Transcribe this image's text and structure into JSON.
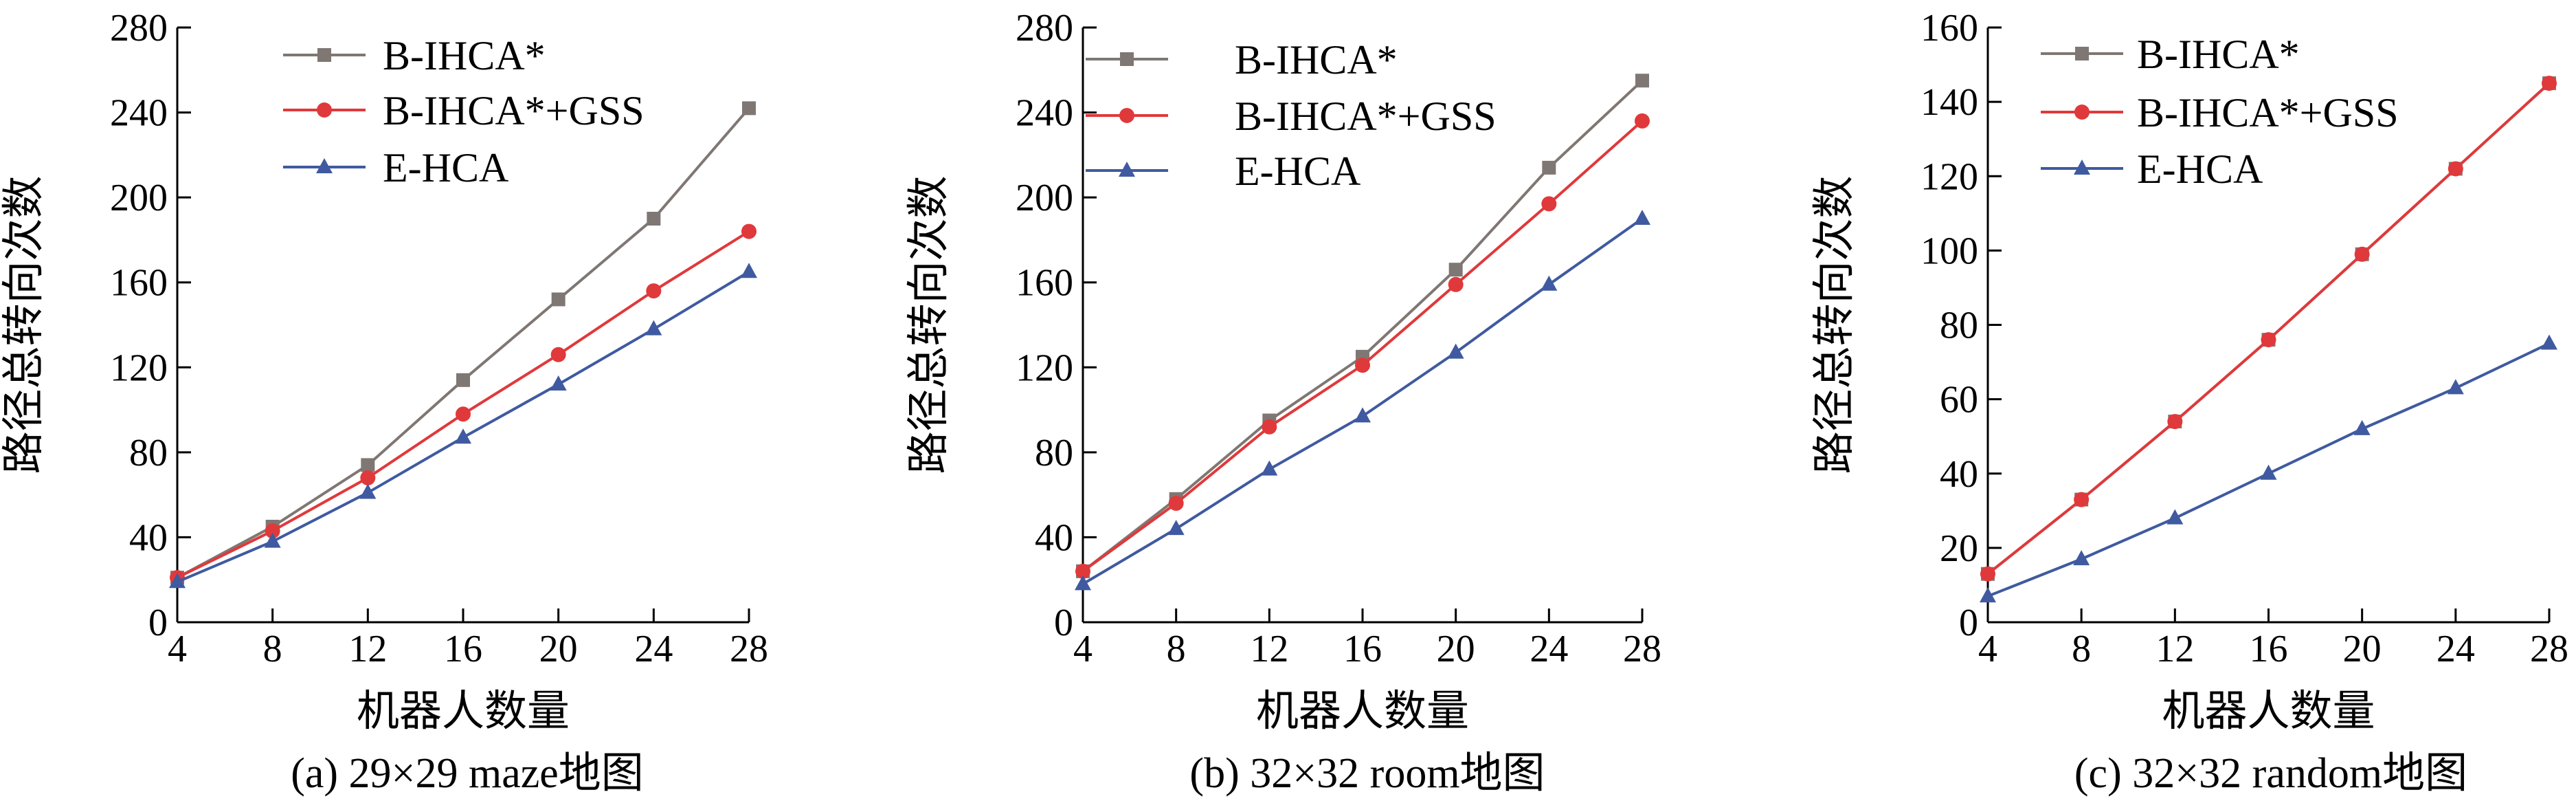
{
  "chart_data": [
    {
      "type": "line",
      "caption": "(a) 29×29 maze地图",
      "xlabel": "机器人数量",
      "ylabel": "路径总转向次数",
      "x": [
        4,
        8,
        12,
        16,
        20,
        24,
        28
      ],
      "xticks": [
        "4",
        "8",
        "12",
        "16",
        "20",
        "24",
        "28"
      ],
      "ylim": [
        0,
        280
      ],
      "yticks": [
        "0",
        "40",
        "80",
        "120",
        "160",
        "200",
        "240",
        "280"
      ],
      "legend_position": "top-left",
      "series": [
        {
          "name": "B-IHCA*",
          "marker": "square",
          "color": "#7f7773",
          "values": [
            21,
            45,
            74,
            114,
            152,
            190,
            242
          ]
        },
        {
          "name": "B-IHCA*+GSS",
          "marker": "circle",
          "color": "#e0393b",
          "values": [
            21,
            43,
            68,
            98,
            126,
            156,
            184
          ]
        },
        {
          "name": "E-HCA",
          "marker": "triangle",
          "color": "#3f5aa0",
          "values": [
            19,
            38,
            61,
            87,
            112,
            138,
            165
          ]
        }
      ]
    },
    {
      "type": "line",
      "caption": "(b) 32×32 room地图",
      "xlabel": "机器人数量",
      "ylabel": "路径总转向次数",
      "x": [
        4,
        8,
        12,
        16,
        20,
        24,
        28
      ],
      "xticks": [
        "4",
        "8",
        "12",
        "16",
        "20",
        "24",
        "28"
      ],
      "ylim": [
        0,
        280
      ],
      "yticks": [
        "0",
        "40",
        "80",
        "120",
        "160",
        "200",
        "240",
        "280"
      ],
      "legend_position": "top-left",
      "series": [
        {
          "name": "B-IHCA*",
          "marker": "square",
          "color": "#7f7773",
          "values": [
            24,
            58,
            95,
            125,
            166,
            214,
            255
          ]
        },
        {
          "name": "B-IHCA*+GSS",
          "marker": "circle",
          "color": "#e0393b",
          "values": [
            24,
            56,
            92,
            121,
            159,
            197,
            236
          ]
        },
        {
          "name": "E-HCA",
          "marker": "triangle",
          "color": "#3f5aa0",
          "values": [
            18,
            44,
            72,
            97,
            127,
            159,
            190
          ]
        }
      ]
    },
    {
      "type": "line",
      "caption": "(c) 32×32 random地图",
      "xlabel": "机器人数量",
      "ylabel": "路径总转向次数",
      "x": [
        4,
        8,
        12,
        16,
        20,
        24,
        28
      ],
      "xticks": [
        "4",
        "8",
        "12",
        "16",
        "20",
        "24",
        "28"
      ],
      "ylim": [
        0,
        160
      ],
      "yticks": [
        "0",
        "20",
        "40",
        "60",
        "80",
        "100",
        "120",
        "140",
        "160"
      ],
      "legend_position": "top-left",
      "series": [
        {
          "name": "B-IHCA*",
          "marker": "square",
          "color": "#7f7773",
          "values": [
            13,
            33,
            54,
            76,
            99,
            122,
            145
          ]
        },
        {
          "name": "B-IHCA*+GSS",
          "marker": "circle",
          "color": "#e0393b",
          "values": [
            13,
            33,
            54,
            76,
            99,
            122,
            145
          ]
        },
        {
          "name": "E-HCA",
          "marker": "triangle",
          "color": "#3f5aa0",
          "values": [
            7,
            17,
            28,
            40,
            52,
            63,
            75
          ]
        }
      ]
    }
  ]
}
